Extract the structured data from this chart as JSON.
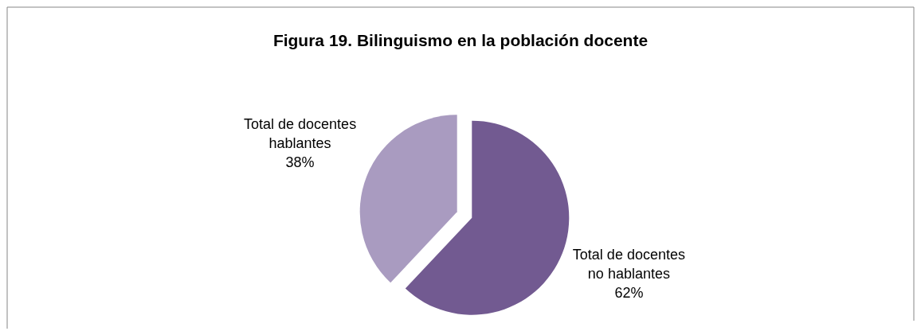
{
  "chart_data": {
    "type": "pie",
    "title": "Figura 19. Bilinguismo en la población docente",
    "categories": [
      "Total de docentes no  hablantes",
      "Total de docentes hablantes"
    ],
    "values": [
      62,
      38
    ],
    "colors": [
      "#725a91",
      "#a99bc0"
    ],
    "value_labels": [
      "62%",
      "38%"
    ]
  }
}
